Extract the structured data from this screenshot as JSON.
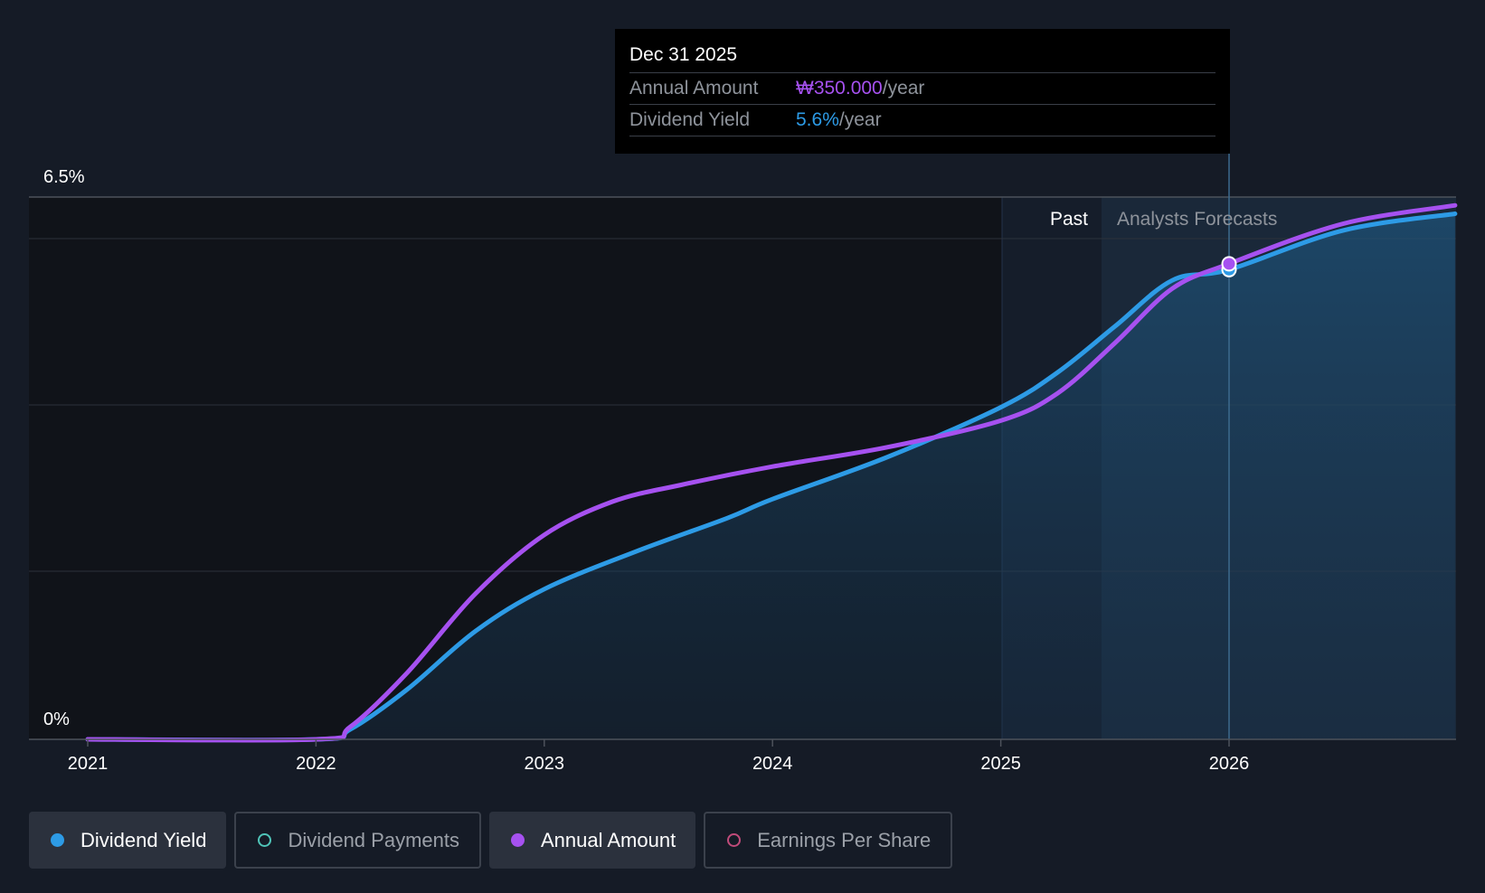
{
  "tooltip": {
    "date": "Dec 31 2025",
    "rows": [
      {
        "label": "Annual Amount",
        "value": "₩350.000",
        "suffix": "/year",
        "color": "#a651f0"
      },
      {
        "label": "Dividend Yield",
        "value": "5.6%",
        "suffix": "/year",
        "color": "#2d9be6"
      }
    ]
  },
  "legend": [
    {
      "label": "Dividend Yield",
      "active": true,
      "color": "#2d9be6",
      "filled": true
    },
    {
      "label": "Dividend Payments",
      "active": false,
      "color": "#4fc4b8",
      "filled": false
    },
    {
      "label": "Annual Amount",
      "active": true,
      "color": "#a651f0",
      "filled": true
    },
    {
      "label": "Earnings Per Share",
      "active": false,
      "color": "#c04b7a",
      "filled": false
    }
  ],
  "chart_data": {
    "type": "line",
    "y_axis_labels": {
      "top": "6.5%",
      "bottom": "0%"
    },
    "x_ticks": [
      "2021",
      "2022",
      "2023",
      "2024",
      "2025",
      "2026"
    ],
    "region_labels": {
      "past": "Past",
      "forecast": "Analysts Forecasts"
    },
    "past_forecast_boundary": 2025.45,
    "x_range": [
      2020.9,
      2026.99
    ],
    "ylim": [
      0,
      6.5
    ],
    "series": [
      {
        "name": "Dividend Yield",
        "color": "#2d9be6",
        "points": [
          [
            2021.0,
            0
          ],
          [
            2022.0,
            0
          ],
          [
            2022.15,
            0.12
          ],
          [
            2022.4,
            0.6
          ],
          [
            2022.7,
            1.3
          ],
          [
            2023.0,
            1.8
          ],
          [
            2023.4,
            2.25
          ],
          [
            2023.8,
            2.65
          ],
          [
            2024.0,
            2.88
          ],
          [
            2024.5,
            3.38
          ],
          [
            2025.0,
            3.98
          ],
          [
            2025.25,
            4.4
          ],
          [
            2025.5,
            4.95
          ],
          [
            2025.75,
            5.5
          ],
          [
            2026.0,
            5.63
          ],
          [
            2026.5,
            6.1
          ],
          [
            2026.99,
            6.3
          ]
        ]
      },
      {
        "name": "Annual Amount",
        "color": "#a651f0",
        "points": [
          [
            2021.0,
            0
          ],
          [
            2022.0,
            0
          ],
          [
            2022.15,
            0.15
          ],
          [
            2022.4,
            0.8
          ],
          [
            2022.7,
            1.75
          ],
          [
            2023.0,
            2.45
          ],
          [
            2023.3,
            2.85
          ],
          [
            2023.6,
            3.05
          ],
          [
            2024.0,
            3.27
          ],
          [
            2024.5,
            3.5
          ],
          [
            2025.0,
            3.82
          ],
          [
            2025.25,
            4.15
          ],
          [
            2025.5,
            4.75
          ],
          [
            2025.75,
            5.4
          ],
          [
            2026.0,
            5.7
          ],
          [
            2026.5,
            6.18
          ],
          [
            2026.99,
            6.4
          ]
        ]
      }
    ],
    "highlight_x": 2026.0
  }
}
